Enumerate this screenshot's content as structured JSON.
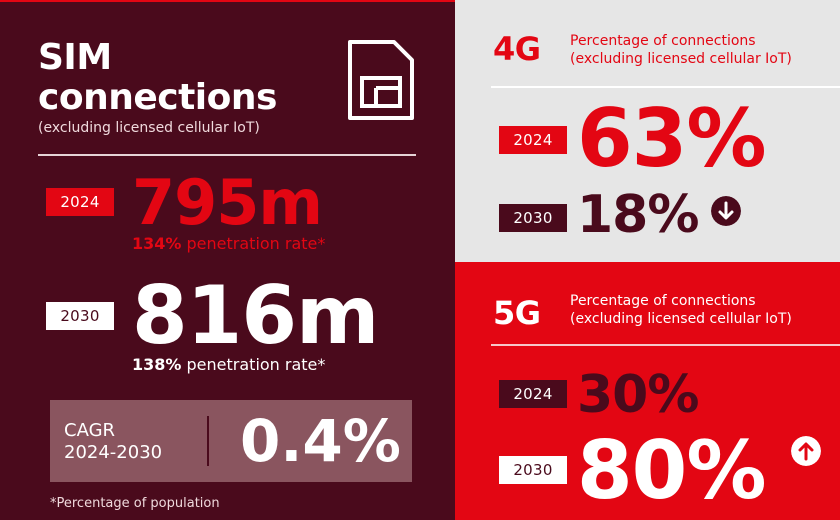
{
  "sim": {
    "title_line1": "SIM",
    "title_line2": "connections",
    "subtitle": "(excluding licensed cellular IoT)",
    "icon": "sim-card-icon",
    "y2024": {
      "year": "2024",
      "value": "795m",
      "pen_pct": "134%",
      "pen_text": " penetration rate*"
    },
    "y2030": {
      "year": "2030",
      "value": "816m",
      "pen_pct": "138%",
      "pen_text": " penetration rate*"
    },
    "cagr": {
      "line1": "CAGR",
      "line2": "2024-2030",
      "value": "0.4%"
    },
    "footnote": "*Percentage of population"
  },
  "g4": {
    "label": "4G",
    "desc_line1": "Percentage of connections",
    "desc_line2": "(excluding licensed cellular IoT)",
    "y2024": {
      "year": "2024",
      "value": "63%"
    },
    "y2030": {
      "year": "2030",
      "value": "18%",
      "trend": "down-arrow-icon"
    }
  },
  "g5": {
    "label": "5G",
    "desc_line1": "Percentage of connections",
    "desc_line2": "(excluding licensed cellular IoT)",
    "y2024": {
      "year": "2024",
      "value": "30%"
    },
    "y2030": {
      "year": "2030",
      "value": "80%",
      "trend": "up-arrow-icon"
    }
  },
  "colors": {
    "wine": "#4a0a1c",
    "red": "#e30613",
    "light_grey": "#e6e6e6",
    "muted": "#8a555f"
  }
}
